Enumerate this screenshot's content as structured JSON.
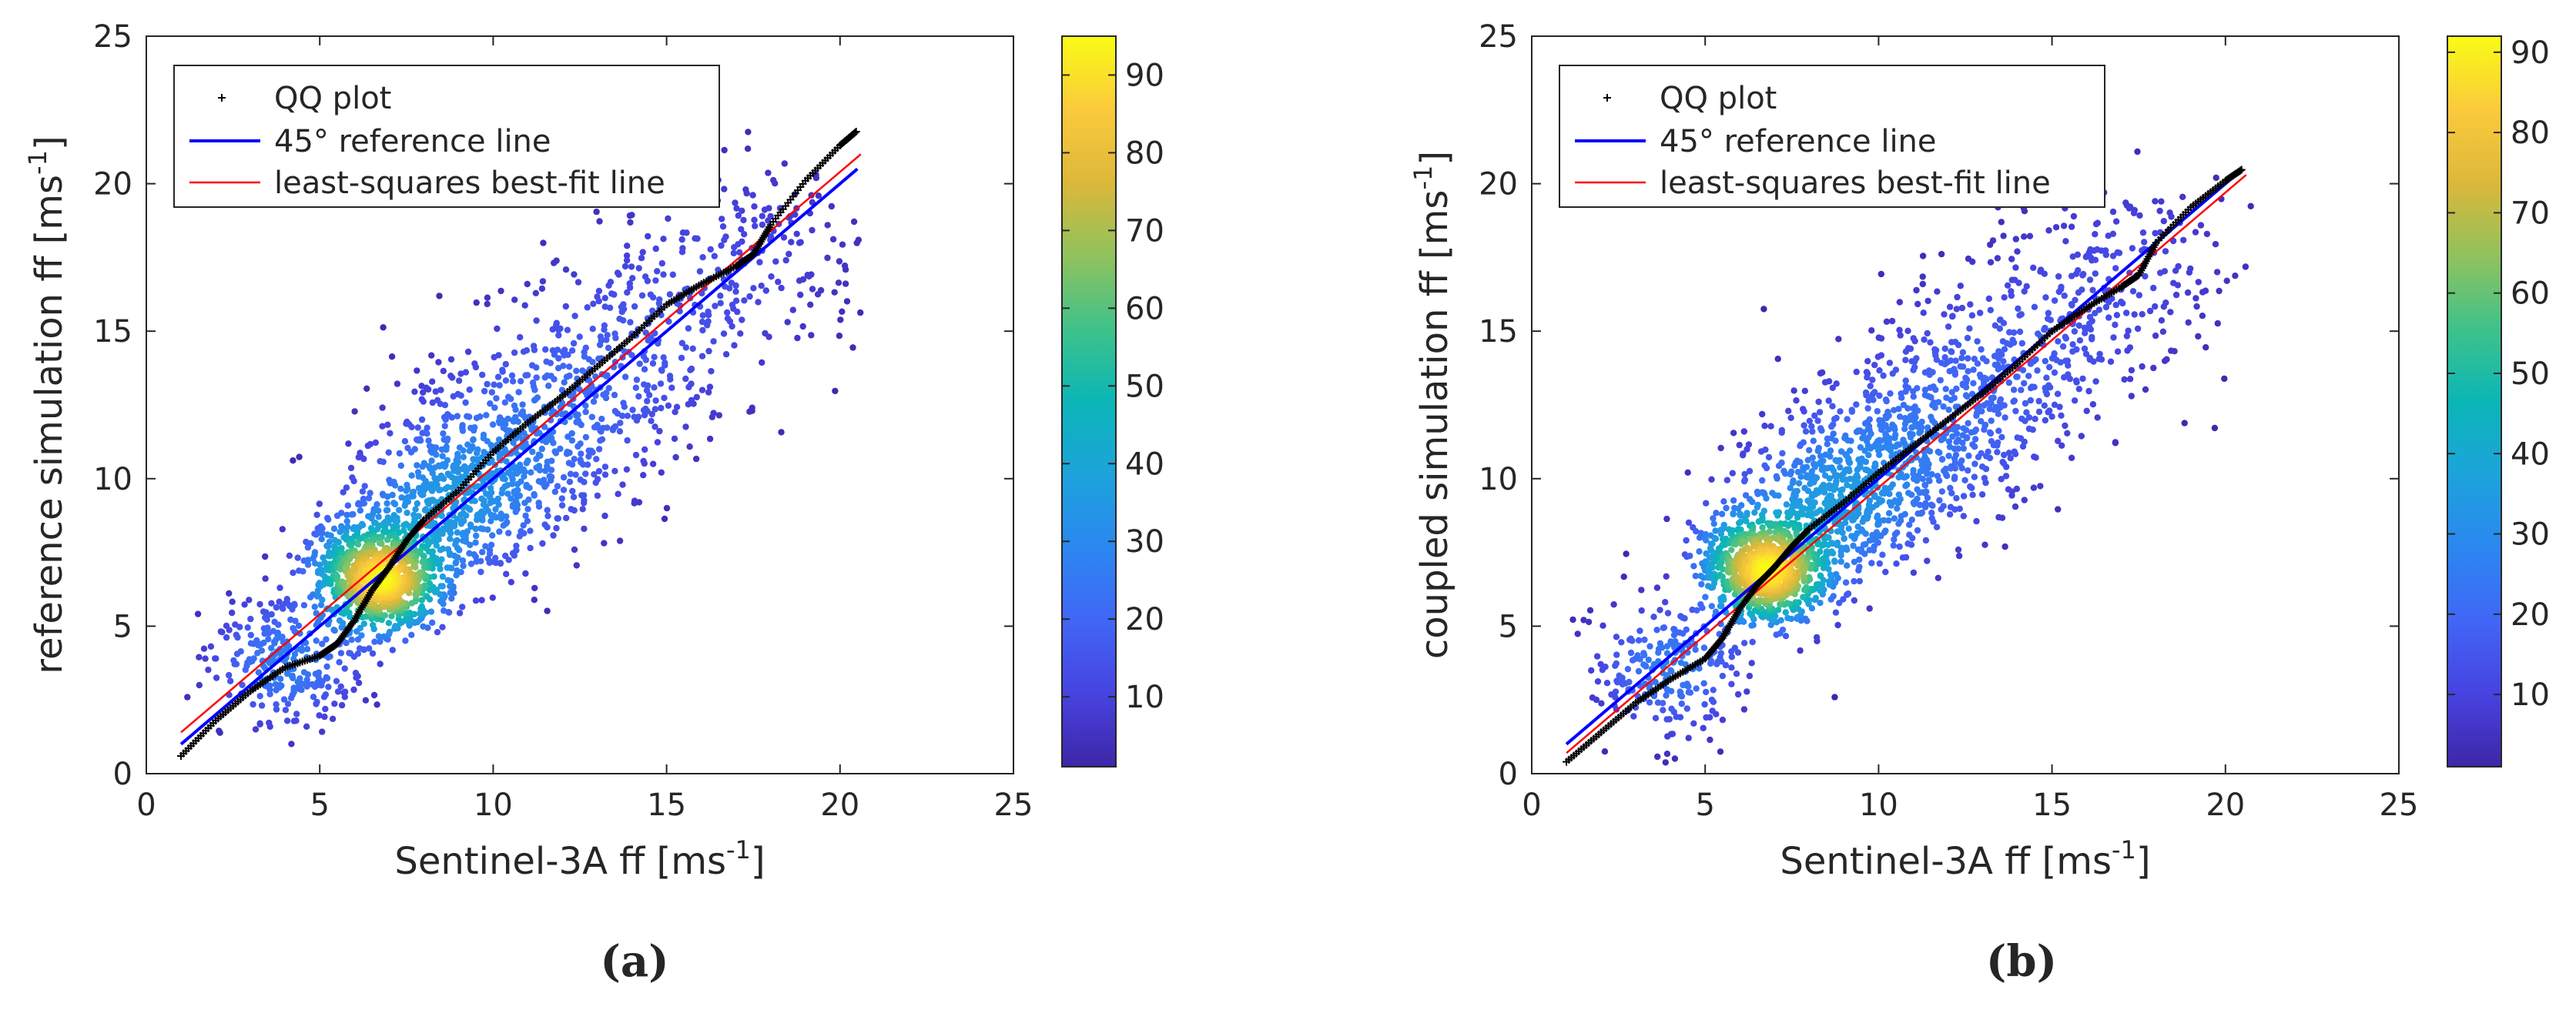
{
  "chart_data": [
    {
      "type": "scatter",
      "panel_label": "(a)",
      "xlabel": "Sentinel-3A ff [ms",
      "xlabel_sup": "-1",
      "xlabel_close": "]",
      "ylabel": "reference simulation ff [ms",
      "ylabel_sup": "-1",
      "ylabel_close": "]",
      "xlim": [
        0,
        25
      ],
      "ylim": [
        0,
        25
      ],
      "xticks": [
        0,
        5,
        10,
        15,
        20,
        25
      ],
      "yticks": [
        0,
        5,
        10,
        15,
        20,
        25
      ],
      "grid": false,
      "legend_position": "top-left",
      "legend": [
        {
          "label": "QQ plot",
          "style": "black-plus-markers"
        },
        {
          "label": "45° reference line",
          "style": "blue-line"
        },
        {
          "label": "least-squares best-fit line",
          "style": "red-line"
        }
      ],
      "colorbar": {
        "min": 1,
        "max": 95,
        "ticks": [
          10,
          20,
          30,
          40,
          50,
          60,
          70,
          80,
          90
        ],
        "colormap": "parula"
      },
      "reference_line": {
        "x": [
          1,
          20.5
        ],
        "y": [
          1,
          20.5
        ]
      },
      "fit_line": {
        "x": [
          1,
          20.6
        ],
        "y": [
          1.4,
          21.0
        ]
      },
      "qq_curve": {
        "x": [
          1.0,
          2.0,
          3.0,
          4.0,
          5.0,
          5.5,
          6.0,
          6.5,
          7.0,
          7.5,
          8.0,
          9.0,
          10.0,
          11.0,
          12.0,
          13.0,
          14.0,
          15.0,
          16.0,
          17.0,
          17.5,
          18.0,
          19.0,
          20.0,
          20.5
        ],
        "y": [
          0.6,
          1.8,
          2.8,
          3.6,
          4.0,
          4.4,
          5.2,
          6.2,
          7.0,
          7.9,
          8.6,
          9.6,
          10.9,
          11.9,
          12.8,
          13.8,
          14.8,
          15.9,
          16.6,
          17.2,
          17.6,
          18.6,
          20.1,
          21.3,
          21.8
        ]
      },
      "density": {
        "centers": [
          [
            6.8,
            6.5
          ],
          [
            8.5,
            9.0
          ],
          [
            10.5,
            10.8
          ],
          [
            12.5,
            13.0
          ],
          [
            15.0,
            15.5
          ],
          [
            4.0,
            3.8
          ],
          [
            17.5,
            18.0
          ],
          [
            5.8,
            7.5
          ]
        ],
        "weights": [
          0.3,
          0.18,
          0.14,
          0.11,
          0.08,
          0.1,
          0.05,
          0.04
        ],
        "spread": [
          1.0,
          1.6,
          1.9,
          2.0,
          2.1,
          1.3,
          2.0,
          1.0
        ],
        "peak_density": 93
      }
    },
    {
      "type": "scatter",
      "panel_label": "(b)",
      "xlabel": "Sentinel-3A ff [ms",
      "xlabel_sup": "-1",
      "xlabel_close": "]",
      "ylabel": "coupled simulation ff [ms",
      "ylabel_sup": "-1",
      "ylabel_close": "]",
      "xlim": [
        0,
        25
      ],
      "ylim": [
        0,
        25
      ],
      "xticks": [
        0,
        5,
        10,
        15,
        20,
        25
      ],
      "yticks": [
        0,
        5,
        10,
        15,
        20,
        25
      ],
      "grid": false,
      "legend_position": "top-left",
      "legend": [
        {
          "label": "QQ plot",
          "style": "black-plus-markers"
        },
        {
          "label": "45° reference line",
          "style": "blue-line"
        },
        {
          "label": "least-squares best-fit line",
          "style": "red-line"
        }
      ],
      "colorbar": {
        "min": 1,
        "max": 92,
        "ticks": [
          10,
          20,
          30,
          40,
          50,
          60,
          70,
          80,
          90
        ],
        "colormap": "parula"
      },
      "reference_line": {
        "x": [
          1,
          20.5
        ],
        "y": [
          1,
          20.5
        ]
      },
      "fit_line": {
        "x": [
          1,
          20.6
        ],
        "y": [
          0.7,
          20.3
        ]
      },
      "qq_curve": {
        "x": [
          1.0,
          2.0,
          3.0,
          4.0,
          5.0,
          5.5,
          6.0,
          6.5,
          7.0,
          7.5,
          8.0,
          9.0,
          10.0,
          11.0,
          12.0,
          13.0,
          14.0,
          15.0,
          16.0,
          17.0,
          17.5,
          18.0,
          19.0,
          20.0,
          20.5
        ],
        "y": [
          0.4,
          1.4,
          2.4,
          3.2,
          3.9,
          4.6,
          5.6,
          6.4,
          7.0,
          7.7,
          8.3,
          9.2,
          10.2,
          11.1,
          12.0,
          12.9,
          13.9,
          15.0,
          15.8,
          16.5,
          16.9,
          18.0,
          19.2,
          20.1,
          20.5
        ]
      },
      "density": {
        "centers": [
          [
            6.8,
            6.8
          ],
          [
            8.5,
            9.0
          ],
          [
            10.5,
            10.6
          ],
          [
            12.5,
            12.8
          ],
          [
            15.0,
            14.8
          ],
          [
            4.0,
            3.6
          ],
          [
            17.5,
            17.6
          ],
          [
            6.0,
            8.0
          ]
        ],
        "weights": [
          0.3,
          0.18,
          0.14,
          0.11,
          0.08,
          0.1,
          0.05,
          0.04
        ],
        "spread": [
          1.0,
          1.6,
          1.9,
          2.0,
          2.0,
          1.3,
          1.8,
          1.0
        ],
        "peak_density": 91
      }
    }
  ]
}
